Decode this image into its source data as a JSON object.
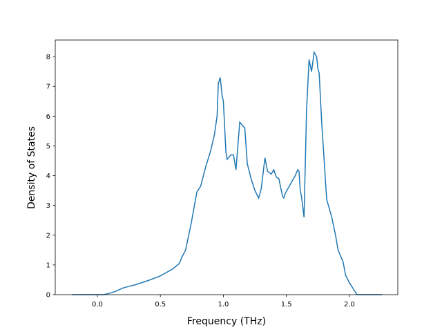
{
  "chart_data": {
    "type": "line",
    "xlabel": "Frequency (THz)",
    "ylabel": "Density of States",
    "x": [
      -0.2,
      0.05,
      0.1,
      0.15,
      0.2,
      0.25,
      0.3,
      0.4,
      0.5,
      0.6,
      0.65,
      0.67,
      0.7,
      0.745,
      0.77,
      0.79,
      0.82,
      0.86,
      0.9,
      0.93,
      0.95,
      0.96,
      0.975,
      0.99,
      1.0,
      1.02,
      1.03,
      1.06,
      1.08,
      1.1,
      1.13,
      1.15,
      1.17,
      1.19,
      1.22,
      1.25,
      1.28,
      1.3,
      1.33,
      1.35,
      1.38,
      1.4,
      1.42,
      1.44,
      1.47,
      1.48,
      1.49,
      1.53,
      1.57,
      1.59,
      1.6,
      1.61,
      1.62,
      1.64,
      1.66,
      1.68,
      1.7,
      1.72,
      1.74,
      1.75,
      1.76,
      1.78,
      1.8,
      1.81,
      1.82,
      1.86,
      1.89,
      1.91,
      1.95,
      1.97,
      2.0,
      2.03,
      2.06,
      2.26
    ],
    "series": [
      {
        "name": "DOS",
        "color": "#1f77b4",
        "values": [
          0,
          0,
          0.05,
          0.12,
          0.22,
          0.28,
          0.33,
          0.47,
          0.63,
          0.87,
          1.05,
          1.25,
          1.5,
          2.4,
          3.0,
          3.45,
          3.65,
          4.3,
          4.85,
          5.4,
          6.0,
          7.1,
          7.3,
          6.7,
          6.5,
          4.8,
          4.55,
          4.7,
          4.7,
          4.2,
          5.8,
          5.7,
          5.6,
          4.4,
          3.9,
          3.5,
          3.25,
          3.55,
          4.6,
          4.15,
          4.05,
          4.2,
          3.95,
          3.9,
          3.3,
          3.25,
          3.4,
          3.7,
          4.0,
          4.2,
          4.15,
          3.5,
          3.3,
          2.6,
          6.2,
          7.9,
          7.5,
          8.15,
          8.0,
          7.6,
          7.45,
          5.8,
          4.5,
          3.8,
          3.2,
          2.6,
          2.0,
          1.5,
          1.1,
          0.65,
          0.4,
          0.2,
          0,
          0
        ]
      }
    ],
    "xlim": [
      -0.334,
      2.384
    ],
    "ylim": [
      0,
      8.56
    ],
    "xticks": [
      {
        "value": 0,
        "label": "0.0"
      },
      {
        "value": 0.5,
        "label": "0.5"
      },
      {
        "value": 1,
        "label": "1.0"
      },
      {
        "value": 1.5,
        "label": "1.5"
      },
      {
        "value": 2,
        "label": "2.0"
      }
    ],
    "yticks": [
      0,
      1,
      2,
      3,
      4,
      5,
      6,
      7,
      8
    ]
  }
}
